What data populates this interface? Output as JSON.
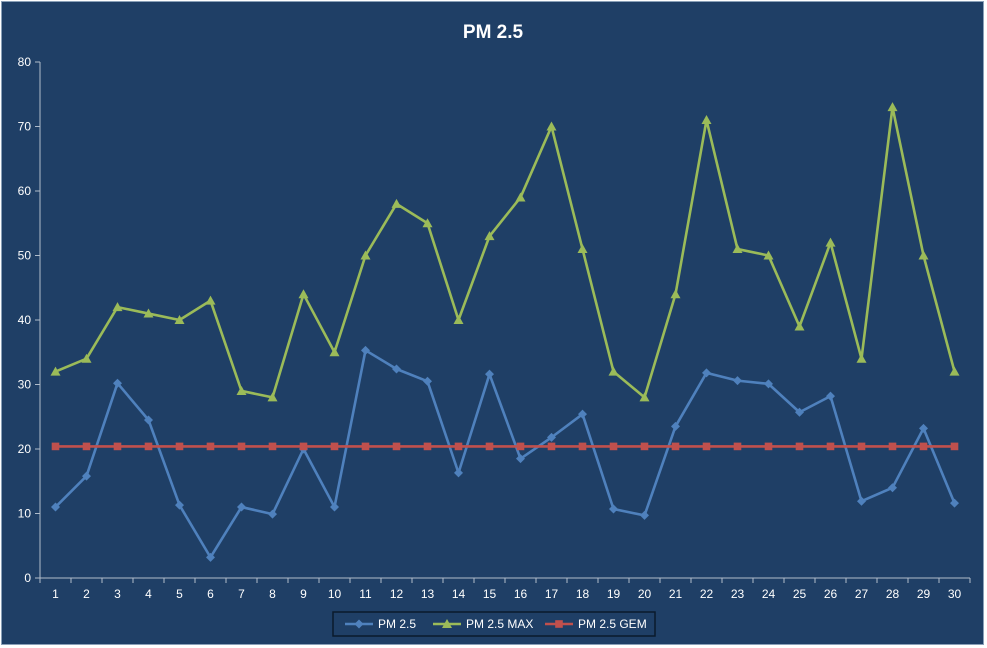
{
  "chart_data": {
    "type": "line",
    "title": "PM 2.5",
    "xlabel": "",
    "ylabel": "",
    "x": [
      1,
      2,
      3,
      4,
      5,
      6,
      7,
      8,
      9,
      10,
      11,
      12,
      13,
      14,
      15,
      16,
      17,
      18,
      19,
      20,
      21,
      22,
      23,
      24,
      25,
      26,
      27,
      28,
      29,
      30
    ],
    "ylim": [
      0,
      80
    ],
    "yticks": [
      0,
      10,
      20,
      30,
      40,
      50,
      60,
      70,
      80
    ],
    "grid": false,
    "legend_position": "bottom",
    "series": [
      {
        "name": "PM 2.5",
        "color": "#4f81bd",
        "marker": "diamond",
        "values": [
          11.0,
          15.8,
          30.2,
          24.5,
          11.3,
          3.2,
          11.0,
          9.9,
          20.0,
          11.0,
          35.3,
          32.4,
          30.5,
          16.3,
          31.6,
          18.5,
          21.8,
          25.4,
          10.7,
          9.7,
          23.5,
          31.8,
          30.6,
          30.1,
          25.7,
          28.2,
          11.9,
          14.0,
          23.2,
          11.6
        ]
      },
      {
        "name": "PM 2.5 MAX",
        "color": "#9bbb59",
        "marker": "triangle",
        "values": [
          32,
          34,
          42,
          41,
          40,
          43,
          29,
          28,
          44,
          35,
          50,
          58,
          55,
          40,
          53,
          59,
          70,
          51,
          32,
          28,
          44,
          71,
          51,
          50,
          39,
          52,
          34,
          73,
          50,
          32
        ]
      },
      {
        "name": "PM 2.5 GEM",
        "color": "#c0504d",
        "marker": "square",
        "values": [
          20.4,
          20.4,
          20.4,
          20.4,
          20.4,
          20.4,
          20.4,
          20.4,
          20.4,
          20.4,
          20.4,
          20.4,
          20.4,
          20.4,
          20.4,
          20.4,
          20.4,
          20.4,
          20.4,
          20.4,
          20.4,
          20.4,
          20.4,
          20.4,
          20.4,
          20.4,
          20.4,
          20.4,
          20.4,
          20.4
        ]
      }
    ]
  }
}
